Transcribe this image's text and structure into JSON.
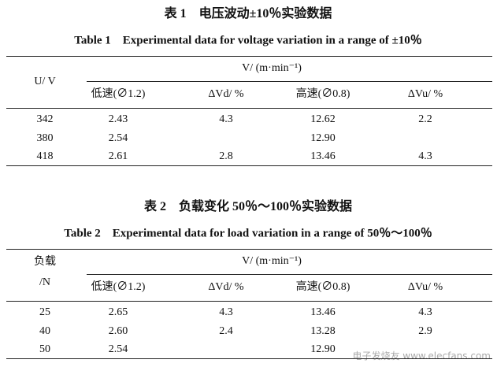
{
  "tables": [
    {
      "title_cn": "表 1　电压波动±10％实验数据",
      "title_en": "Table 1　Experimental data for voltage variation in a range of ±10％",
      "row_header": [
        "U/ V"
      ],
      "group_header": "V/ (m·min⁻¹)",
      "sub_headers": [
        "低速(∅1.2)",
        "ΔVd/ %",
        "高速(∅0.8)",
        "ΔVu/ %"
      ],
      "rows": [
        {
          "key": "342",
          "low": "2.43",
          "dvd": "4.3",
          "high": "12.62",
          "dvu": "2.2"
        },
        {
          "key": "380",
          "low": "2.54",
          "high": "12.90"
        },
        {
          "key": "418",
          "low": "2.61",
          "dvd": "2.8",
          "high": "13.46",
          "dvu": "4.3"
        }
      ]
    },
    {
      "title_cn": "表 2　负载变化 50％～100％实验数据",
      "title_en": "Table 2　Experimental data for load variation in a range of 50％～100％",
      "row_header": [
        "负载",
        "/N"
      ],
      "group_header": "V/ (m·min⁻¹)",
      "sub_headers": [
        "低速(∅1.2)",
        "ΔVd/ %",
        "高速(∅0.8)",
        "ΔVu/ %"
      ],
      "rows": [
        {
          "key": "25",
          "low": "2.65",
          "dvd": "4.3",
          "high": "13.46",
          "dvu": "4.3"
        },
        {
          "key": "40",
          "low": "2.60",
          "dvd": "2.4",
          "high": "13.28",
          "dvu": "2.9"
        },
        {
          "key": "50",
          "low": "2.54",
          "high": "12.90"
        }
      ]
    }
  ],
  "watermark": "电子发烧友 www.elecfans.com"
}
